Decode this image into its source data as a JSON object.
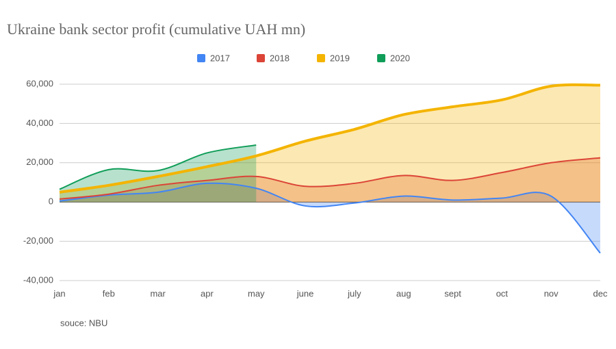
{
  "chart_data": {
    "type": "area",
    "title": "Ukraine bank sector profit (cumulative UAH mn)",
    "note": "souce: NBU",
    "categories": [
      "jan",
      "feb",
      "mar",
      "apr",
      "may",
      "june",
      "july",
      "aug",
      "sept",
      "oct",
      "nov",
      "dec"
    ],
    "series": [
      {
        "name": "2017",
        "color": "#4285f4",
        "values": [
          500,
          3500,
          5000,
          9500,
          7000,
          -2000,
          -500,
          3000,
          1000,
          2000,
          3000,
          -26000
        ]
      },
      {
        "name": "2018",
        "color": "#db4437",
        "values": [
          1500,
          4000,
          8500,
          11000,
          13000,
          8000,
          9500,
          13500,
          11000,
          15000,
          20000,
          22500
        ]
      },
      {
        "name": "2019",
        "color": "#f4b400",
        "values": [
          5000,
          8500,
          13000,
          18000,
          23500,
          31000,
          37000,
          44500,
          48500,
          52000,
          59000,
          59500
        ]
      },
      {
        "name": "2020",
        "color": "#0f9d58",
        "values": [
          6500,
          16500,
          16000,
          25000,
          29000,
          null,
          null,
          null,
          null,
          null,
          null,
          null
        ]
      }
    ],
    "ylim": [
      -40000,
      60000
    ],
    "yticks": [
      {
        "value": -40000,
        "label": "-40,000"
      },
      {
        "value": -20000,
        "label": "-20,000"
      },
      0,
      {
        "value": 20000,
        "label": "20,000"
      },
      {
        "value": 40000,
        "label": "40,000"
      },
      {
        "value": 60000,
        "label": "60,000"
      }
    ],
    "grid": true,
    "legend": "top"
  }
}
